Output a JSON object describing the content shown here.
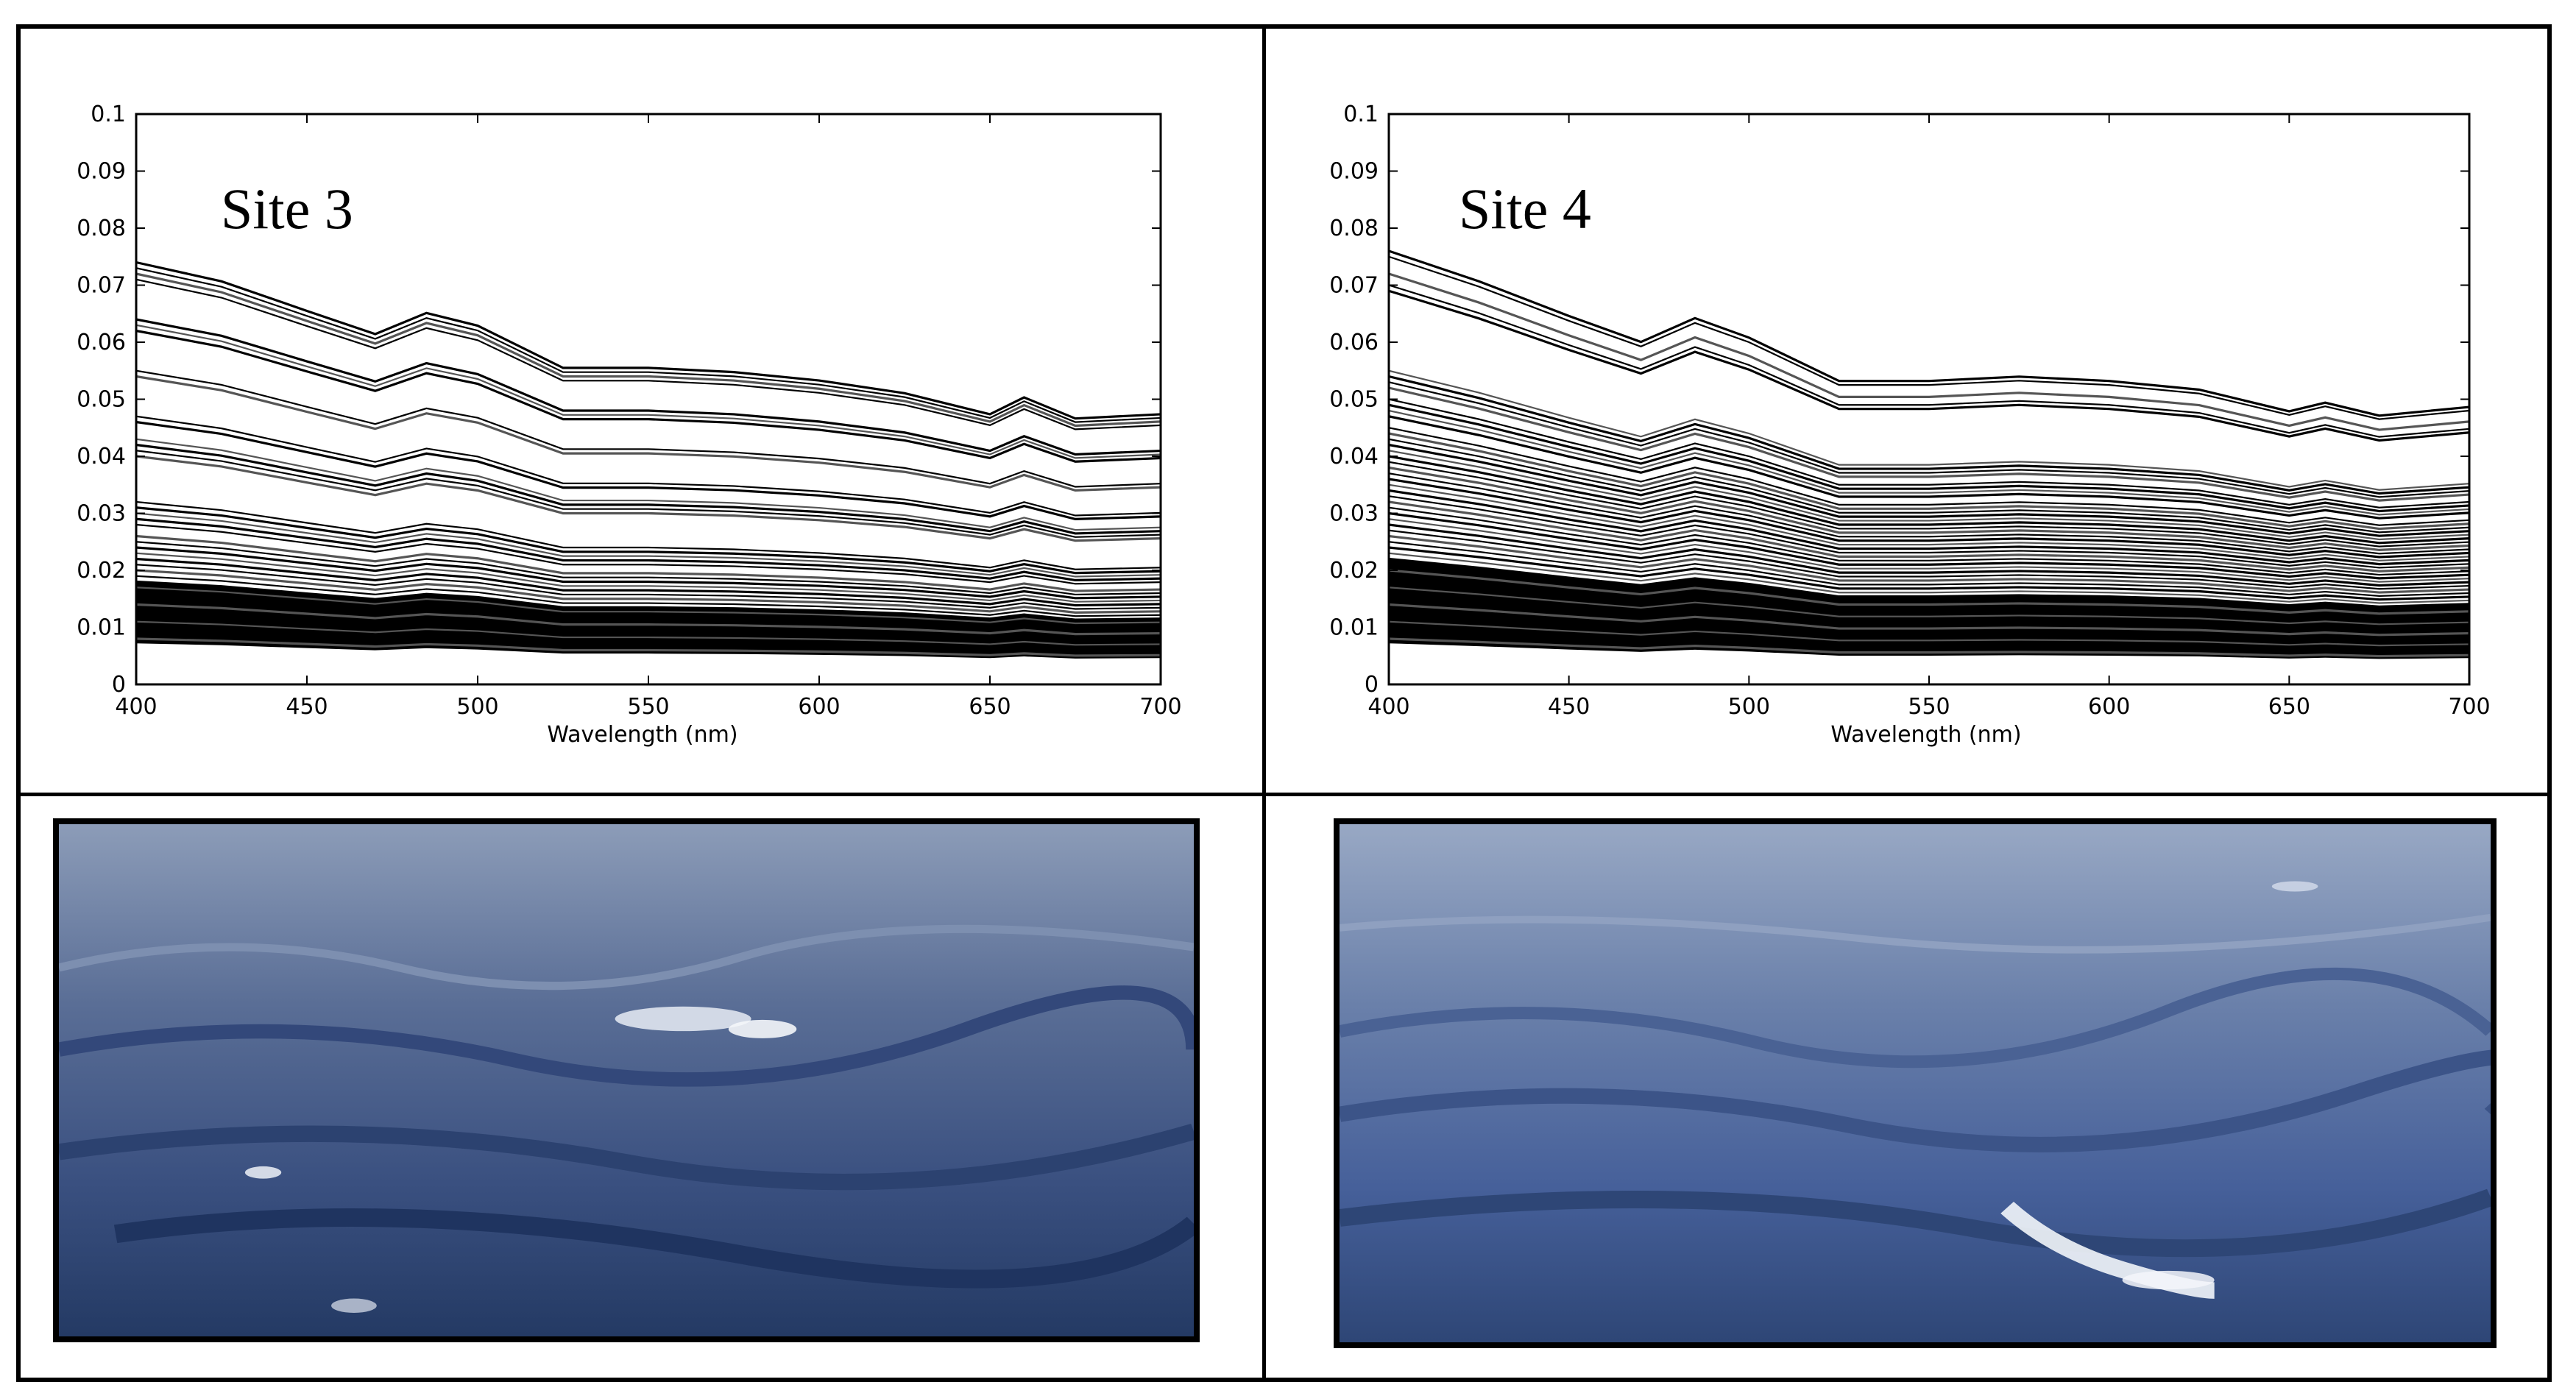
{
  "chart_data": [
    {
      "type": "line",
      "annotation": "Site 3",
      "xlabel": "Wavelength (nm)",
      "ylabel": "",
      "xlim": [
        400,
        700
      ],
      "ylim": [
        0,
        0.1
      ],
      "x_ticks": [
        "400",
        "450",
        "500",
        "550",
        "600",
        "650",
        "700"
      ],
      "y_ticks": [
        "0",
        "0.01",
        "0.02",
        "0.03",
        "0.04",
        "0.05",
        "0.06",
        "0.07",
        "0.08",
        "0.09",
        "0.1"
      ],
      "grid": false,
      "x": [
        400,
        425,
        450,
        470,
        485,
        500,
        525,
        550,
        575,
        600,
        625,
        650,
        660,
        675,
        700
      ],
      "series_shape": [
        1.0,
        0.955,
        0.885,
        0.83,
        0.88,
        0.85,
        0.75,
        0.75,
        0.74,
        0.72,
        0.69,
        0.64,
        0.68,
        0.63,
        0.64
      ],
      "series_start_values": [
        0.074,
        0.073,
        0.072,
        0.071,
        0.064,
        0.063,
        0.062,
        0.055,
        0.054,
        0.047,
        0.046,
        0.043,
        0.042,
        0.041,
        0.04,
        0.032,
        0.031,
        0.03,
        0.029,
        0.028,
        0.026,
        0.025,
        0.024,
        0.023,
        0.022,
        0.021,
        0.02,
        0.019,
        0.018,
        0.017,
        0.016,
        0.015,
        0.014,
        0.013,
        0.012,
        0.011,
        0.01,
        0.009,
        0.008
      ]
    },
    {
      "type": "line",
      "annotation": "Site 4",
      "xlabel": "Wavelength (nm)",
      "ylabel": "",
      "xlim": [
        400,
        700
      ],
      "ylim": [
        0,
        0.1
      ],
      "x_ticks": [
        "400",
        "450",
        "500",
        "550",
        "600",
        "650",
        "700"
      ],
      "y_ticks": [
        "0",
        "0.01",
        "0.02",
        "0.03",
        "0.04",
        "0.05",
        "0.06",
        "0.07",
        "0.08",
        "0.09",
        "0.1"
      ],
      "grid": false,
      "x": [
        400,
        425,
        450,
        470,
        485,
        500,
        525,
        550,
        575,
        600,
        625,
        650,
        660,
        675,
        700
      ],
      "series_shape": [
        1.0,
        0.93,
        0.85,
        0.79,
        0.845,
        0.8,
        0.7,
        0.7,
        0.71,
        0.7,
        0.68,
        0.63,
        0.65,
        0.62,
        0.64
      ],
      "series_start_values": [
        0.076,
        0.075,
        0.072,
        0.07,
        0.069,
        0.055,
        0.054,
        0.053,
        0.052,
        0.05,
        0.049,
        0.048,
        0.047,
        0.045,
        0.044,
        0.043,
        0.042,
        0.041,
        0.04,
        0.039,
        0.038,
        0.037,
        0.036,
        0.035,
        0.034,
        0.033,
        0.032,
        0.031,
        0.03,
        0.029,
        0.028,
        0.027,
        0.026,
        0.025,
        0.024,
        0.023,
        0.022,
        0.021,
        0.02,
        0.019,
        0.018,
        0.017,
        0.016,
        0.015,
        0.014,
        0.013,
        0.012,
        0.011,
        0.01,
        0.009,
        0.008
      ]
    }
  ],
  "photos": [
    {
      "subject": "ocean-surface-photo-site-3",
      "colors": {
        "sky": "#8c9cb8",
        "water_mid": "#4c6088",
        "water_deep": "#243a64",
        "foam": "#f4f6fa"
      }
    },
    {
      "subject": "ocean-surface-photo-site-4",
      "colors": {
        "sky": "#98a8c4",
        "water_mid": "#58709c",
        "water_deep": "#2e4676",
        "foam": "#f4f6fa"
      }
    }
  ]
}
